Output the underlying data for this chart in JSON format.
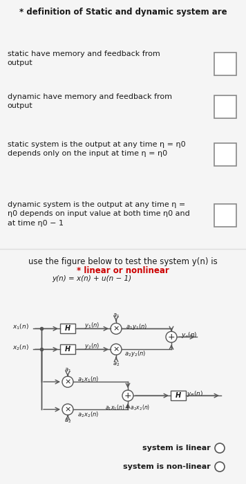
{
  "bg_color": "#f5f5f5",
  "card1_bg": "#ffffff",
  "card2_bg": "#ffffff",
  "title_text": "* definition of Static and dynamic system are",
  "items": [
    "static have memory and feedback from\noutput",
    "dynamic have memory and feedback from\noutput",
    "static system is the output at any time η = η0\ndepends only on the input at time η = η0",
    "dynamic system is the output at any time η =\nη0 depends on input value at both time η0 and\nat time η0 − 1"
  ],
  "section2_header": "use the figure below to test the system y(n) is",
  "section2_subheader": "* linear or nonlinear",
  "equation": "y(n) = x(n) + u(n − 1)",
  "radio_options": [
    "system is linear",
    "system is non-linear"
  ],
  "text_color": "#1a1a1a",
  "checkbox_color": "#aaaaaa",
  "line_color": "#555555",
  "box_color": "#555555"
}
